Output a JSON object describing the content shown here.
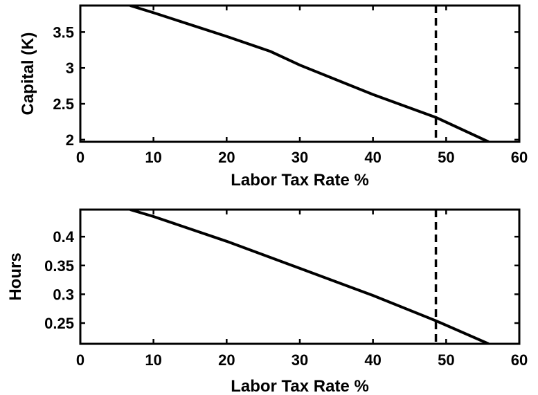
{
  "chart_data": [
    {
      "type": "line",
      "xlabel": "Labor Tax Rate %",
      "ylabel": "Capital (K)",
      "xlim": [
        0,
        60
      ],
      "ylim": [
        1.97,
        3.87
      ],
      "xticks": [
        0,
        10,
        20,
        30,
        40,
        50,
        60
      ],
      "yticks": [
        2,
        2.5,
        3,
        3.5
      ],
      "ytick_labels": [
        "2",
        "2.5",
        "3",
        "3.5"
      ],
      "grid": false,
      "vline": {
        "x": 48.6,
        "style": "dashed"
      },
      "series": [
        {
          "x": [
            6.8,
            10,
            20,
            26,
            30,
            40,
            48.6,
            55.8
          ],
          "values": [
            3.87,
            3.77,
            3.44,
            3.23,
            3.04,
            2.63,
            2.31,
            1.97
          ]
        }
      ]
    },
    {
      "type": "line",
      "xlabel": "Labor Tax Rate %",
      "ylabel": "Hours",
      "xlim": [
        0,
        60
      ],
      "ylim": [
        0.214,
        0.447
      ],
      "xticks": [
        0,
        10,
        20,
        30,
        40,
        50,
        60
      ],
      "yticks": [
        0.25,
        0.3,
        0.35,
        0.4
      ],
      "ytick_labels": [
        "0.25",
        "0.3",
        "0.35",
        "0.4"
      ],
      "grid": false,
      "vline": {
        "x": 48.6,
        "style": "dashed"
      },
      "series": [
        {
          "x": [
            6.8,
            10,
            20,
            30,
            40,
            48.6,
            55.8
          ],
          "values": [
            0.447,
            0.435,
            0.392,
            0.345,
            0.298,
            0.254,
            0.214
          ]
        }
      ]
    }
  ]
}
